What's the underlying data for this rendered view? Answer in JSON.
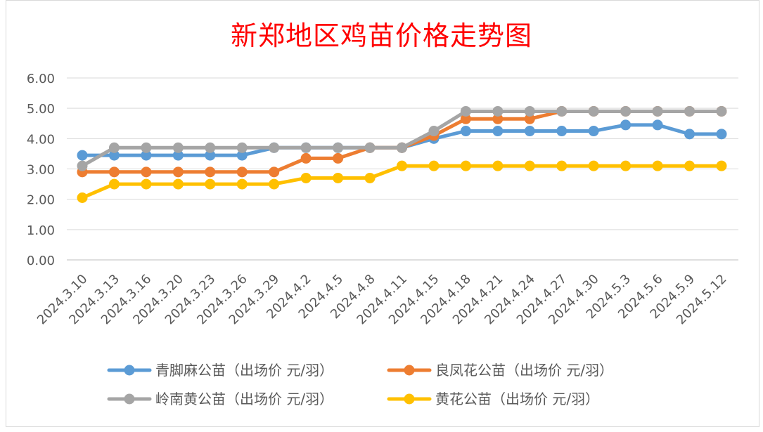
{
  "chart_data": {
    "type": "line",
    "title": "新郑地区鸡苗价格走势图",
    "xlabel": "",
    "ylabel": "",
    "ylim": [
      0,
      6
    ],
    "y_ticks": [
      "0.00",
      "1.00",
      "2.00",
      "3.00",
      "4.00",
      "5.00",
      "6.00"
    ],
    "grid": true,
    "legend_position": "bottom",
    "categories": [
      "2024.3.10",
      "2024.3.13",
      "2024.3.16",
      "2024.3.20",
      "2024.3.23",
      "2024.3.26",
      "2024.3.29",
      "2024.4.2",
      "2024.4.5",
      "2024.4.8",
      "2024.4.11",
      "2024.4.15",
      "2024.4.18",
      "2024.4.21",
      "2024.4.24",
      "2024.4.27",
      "2024.4.30",
      "2024.5.3",
      "2024.5.6",
      "2024.5.9",
      "2024.5.12"
    ],
    "series": [
      {
        "name": "青脚麻公苗（出场价 元/羽）",
        "color": "#5b9bd5",
        "values": [
          3.45,
          3.45,
          3.45,
          3.45,
          3.45,
          3.45,
          3.7,
          3.7,
          3.7,
          3.7,
          3.7,
          4.0,
          4.25,
          4.25,
          4.25,
          4.25,
          4.25,
          4.45,
          4.45,
          4.15,
          4.15
        ]
      },
      {
        "name": "良凤花公苗（出场价 元/羽）",
        "color": "#ed7d31",
        "values": [
          2.9,
          2.9,
          2.9,
          2.9,
          2.9,
          2.9,
          2.9,
          3.35,
          3.35,
          3.7,
          3.7,
          4.1,
          4.65,
          4.65,
          4.65,
          4.9,
          4.9,
          4.9,
          4.9,
          4.9,
          4.9
        ]
      },
      {
        "name": "岭南黄公苗（出场价 元/羽）",
        "color": "#a5a5a5",
        "values": [
          3.1,
          3.7,
          3.7,
          3.7,
          3.7,
          3.7,
          3.7,
          3.7,
          3.7,
          3.7,
          3.7,
          4.25,
          4.9,
          4.9,
          4.9,
          4.9,
          4.9,
          4.9,
          4.9,
          4.9,
          4.9
        ]
      },
      {
        "name": "黄花公苗（出场价 元/羽）",
        "color": "#ffc000",
        "values": [
          2.05,
          2.5,
          2.5,
          2.5,
          2.5,
          2.5,
          2.5,
          2.7,
          2.7,
          2.7,
          3.1,
          3.1,
          3.1,
          3.1,
          3.1,
          3.1,
          3.1,
          3.1,
          3.1,
          3.1,
          3.1
        ]
      }
    ]
  }
}
